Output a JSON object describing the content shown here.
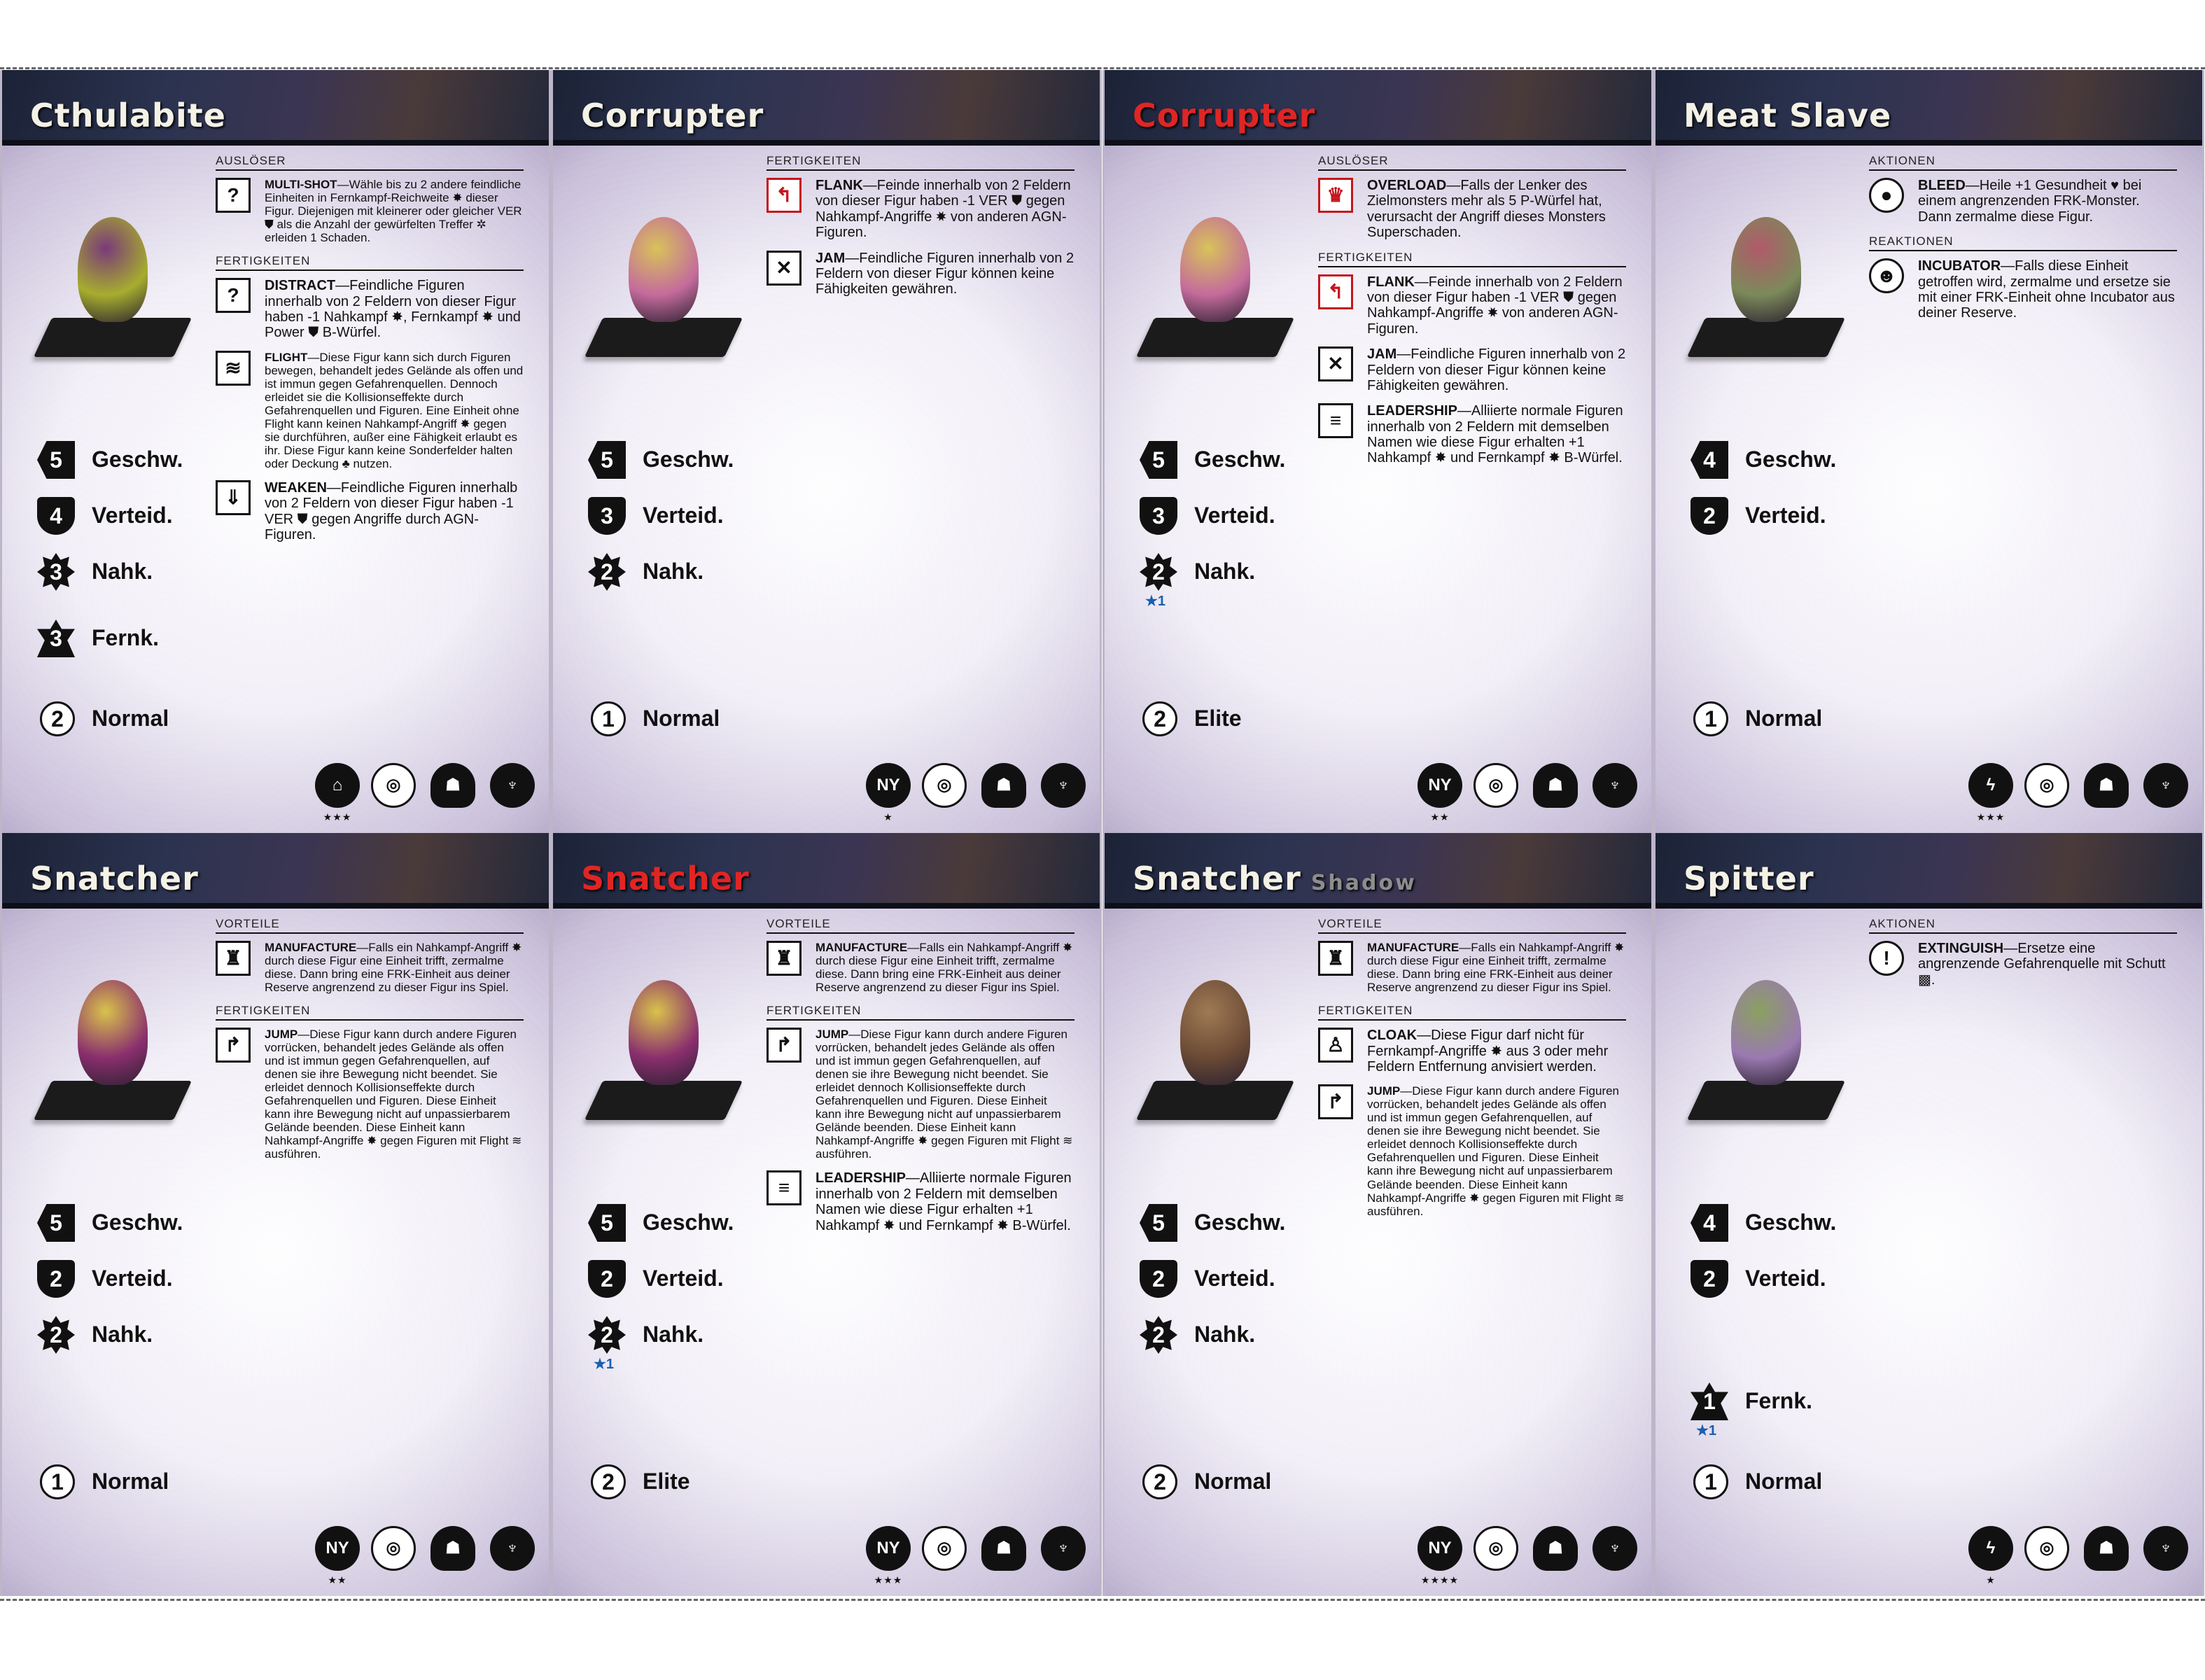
{
  "cards": [
    {
      "name": "Cthulabite",
      "subtitle": "",
      "name_red": false,
      "stats": [
        {
          "kind": "speed",
          "value": "5",
          "label": "Geschw.",
          "mod": ""
        },
        {
          "kind": "def",
          "value": "4",
          "label": "Verteid.",
          "mod": ""
        },
        {
          "kind": "melee",
          "value": "3",
          "label": "Nahk.",
          "mod": ""
        },
        {
          "kind": "ranged",
          "value": "3",
          "label": "Fernk.",
          "mod": ""
        },
        {
          "kind": "rank",
          "value": "2",
          "label": "Normal",
          "mod": ""
        }
      ],
      "sections": [
        {
          "title": "AUSLÖSER",
          "abilities": [
            {
              "icon": "?",
              "icon_name": "multi-shot-icon",
              "name": "MULTI-SHOT",
              "text": "—Wähle bis zu 2 andere feindliche Einheiten in Fernkampf-Reichweite ✸ dieser Figur. Diejenigen mit kleinerer oder gleicher VER ⛊ als die Anzahl der gewürfelten Treffer ✲ erleiden 1 Schaden.",
              "small": true
            }
          ]
        },
        {
          "title": "FERTIGKEITEN",
          "abilities": [
            {
              "icon": "?",
              "icon_name": "distract-icon",
              "name": "DISTRACT",
              "text": "—Feindliche Figuren innerhalb von 2 Feldern von dieser Figur haben -1 Nahkampf ✸, Fernkampf ✸ und Power ⛊ B-Würfel.",
              "small": false
            },
            {
              "icon": "≋",
              "icon_name": "flight-icon",
              "name": "FLIGHT",
              "text": "—Diese Figur kann sich durch Figuren bewegen, behandelt jedes Gelände als offen und ist immun gegen Gefahrenquellen. Dennoch erleidet sie die Kollisionseffekte durch Gefahrenquellen und Figuren. Eine Einheit ohne Flight kann keinen Nahkampf-Angriff ✸ gegen sie durchführen, außer eine Fähigkeit erlaubt es ihr. Diese Figur kann keine Sonderfelder halten oder Deckung ♣ nutzen.",
              "small": true
            },
            {
              "icon": "⇓",
              "icon_name": "weaken-icon",
              "name": "WEAKEN",
              "text": "—Feindliche Figuren innerhalb von 2 Feldern von dieser Figur haben -1 VER ⛊ gegen Angriffe durch AGN-Figuren.",
              "small": false
            }
          ]
        }
      ],
      "footer": [
        "★★★",
        "⌂",
        "◎",
        "☗",
        "♆"
      ],
      "figure_color": "#a6ad2e",
      "figure_accent": "#7a3a7a"
    },
    {
      "name": "Corrupter",
      "subtitle": "",
      "name_red": false,
      "stats": [
        {
          "kind": "speed",
          "value": "5",
          "label": "Geschw.",
          "mod": ""
        },
        {
          "kind": "def",
          "value": "3",
          "label": "Verteid.",
          "mod": ""
        },
        {
          "kind": "melee",
          "value": "2",
          "label": "Nahk.",
          "mod": ""
        },
        {
          "kind": "rank",
          "value": "1",
          "label": "Normal",
          "mod": ""
        }
      ],
      "sections": [
        {
          "title": "FERTIGKEITEN",
          "abilities": [
            {
              "icon": "↰",
              "icon_name": "flank-icon",
              "name": "FLANK",
              "text": "—Feinde innerhalb von 2 Feldern von dieser Figur haben -1 VER ⛊ gegen Nahkampf-Angriffe ✸ von anderen AGN-Figuren.",
              "small": false,
              "red": true
            },
            {
              "icon": "✕",
              "icon_name": "jam-icon",
              "name": "JAM",
              "text": "—Feindliche Figuren innerhalb von 2 Feldern von dieser Figur können keine Fähigkeiten gewähren.",
              "small": false
            }
          ]
        }
      ],
      "footer": [
        "★",
        "NY",
        "◎",
        "☗",
        "♆"
      ],
      "figure_color": "#c46b9c",
      "figure_accent": "#d8c25a"
    },
    {
      "name": "Corrupter",
      "subtitle": "",
      "name_red": true,
      "stats": [
        {
          "kind": "speed",
          "value": "5",
          "label": "Geschw.",
          "mod": ""
        },
        {
          "kind": "def",
          "value": "3",
          "label": "Verteid.",
          "mod": ""
        },
        {
          "kind": "melee",
          "value": "2",
          "label": "Nahk.",
          "mod": "★1"
        },
        {
          "kind": "rank",
          "value": "2",
          "label": "Elite",
          "mod": ""
        }
      ],
      "sections": [
        {
          "title": "AUSLÖSER",
          "abilities": [
            {
              "icon": "♛",
              "icon_name": "overload-icon",
              "name": "OVERLOAD",
              "text": "—Falls der Lenker des Zielmonsters mehr als 5 P-Würfel hat, verursacht der Angriff dieses Monsters Superschaden.",
              "small": false,
              "red": true
            }
          ]
        },
        {
          "title": "FERTIGKEITEN",
          "abilities": [
            {
              "icon": "↰",
              "icon_name": "flank-icon",
              "name": "FLANK",
              "text": "—Feinde innerhalb von 2 Feldern von dieser Figur haben -1 VER ⛊ gegen Nahkampf-Angriffe ✸ von anderen AGN-Figuren.",
              "small": false,
              "red": true
            },
            {
              "icon": "✕",
              "icon_name": "jam-icon",
              "name": "JAM",
              "text": "—Feindliche Figuren innerhalb von 2 Feldern von dieser Figur können keine Fähigkeiten gewähren.",
              "small": false
            },
            {
              "icon": "≡",
              "icon_name": "leadership-icon",
              "name": "LEADERSHIP",
              "text": "—Alliierte normale Figuren innerhalb von 2 Feldern mit demselben Namen wie diese Figur erhalten +1 Nahkampf ✸ und Fernkampf ✸ B-Würfel.",
              "small": false
            }
          ]
        }
      ],
      "footer": [
        "★★",
        "NY",
        "◎",
        "☗",
        "♆"
      ],
      "figure_color": "#c46b9c",
      "figure_accent": "#d8c25a"
    },
    {
      "name": "Meat Slave",
      "subtitle": "",
      "name_red": false,
      "stats": [
        {
          "kind": "speed",
          "value": "4",
          "label": "Geschw.",
          "mod": ""
        },
        {
          "kind": "def",
          "value": "2",
          "label": "Verteid.",
          "mod": ""
        },
        {
          "kind": "rank",
          "value": "1",
          "label": "Normal",
          "mod": ""
        }
      ],
      "sections": [
        {
          "title": "AKTIONEN",
          "abilities": [
            {
              "icon": "●",
              "icon_name": "bleed-icon",
              "name": "BLEED",
              "text": "—Heile +1 Gesundheit ♥ bei einem angrenzenden FRK-Monster. Dann zermalme diese Figur.",
              "small": false,
              "round": true
            }
          ]
        },
        {
          "title": "REAKTIONEN",
          "abilities": [
            {
              "icon": "☻",
              "icon_name": "incubator-icon",
              "name": "INCUBATOR",
              "text": "—Falls diese Einheit getroffen wird, zermalme und ersetze sie mit einer FRK-Einheit ohne Incubator aus deiner Reserve.",
              "small": false,
              "round": true
            }
          ]
        }
      ],
      "footer": [
        "★★★",
        "ϟ",
        "◎",
        "☗",
        "♆"
      ],
      "figure_color": "#7c8a5a",
      "figure_accent": "#b05a6a"
    },
    {
      "name": "Snatcher",
      "subtitle": "",
      "name_red": false,
      "stats": [
        {
          "kind": "speed",
          "value": "5",
          "label": "Geschw.",
          "mod": ""
        },
        {
          "kind": "def",
          "value": "2",
          "label": "Verteid.",
          "mod": ""
        },
        {
          "kind": "melee",
          "value": "2",
          "label": "Nahk.",
          "mod": ""
        },
        {
          "kind": "rank",
          "value": "1",
          "label": "Normal",
          "mod": ""
        }
      ],
      "sections": [
        {
          "title": "VORTEILE",
          "abilities": [
            {
              "icon": "♜",
              "icon_name": "manufacture-icon",
              "name": "MANUFACTURE",
              "text": "—Falls ein Nahkampf-Angriff ✸ durch diese Figur eine Einheit trifft, zermalme diese. Dann bring eine FRK-Einheit aus deiner Reserve angrenzend zu dieser Figur ins Spiel.",
              "small": true
            }
          ]
        },
        {
          "title": "FERTIGKEITEN",
          "abilities": [
            {
              "icon": "↱",
              "icon_name": "jump-icon",
              "name": "JUMP",
              "text": "—Diese Figur kann durch andere Figuren vorrücken, behandelt jedes Gelände als offen und ist immun gegen Gefahrenquellen, auf denen sie ihre Bewegung nicht beendet. Sie erleidet dennoch Kollisionseffekte durch Gefahrenquellen und Figuren. Diese Einheit kann ihre Bewegung nicht auf unpassierbarem Gelände beenden. Diese Einheit kann Nahkampf-Angriffe ✸ gegen Figuren mit Flight ≋ ausführen.",
              "small": true
            }
          ]
        }
      ],
      "footer": [
        "★★",
        "NY",
        "◎",
        "☗",
        "♆"
      ],
      "figure_color": "#8a2f6e",
      "figure_accent": "#d9c24b"
    },
    {
      "name": "Snatcher",
      "subtitle": "",
      "name_red": true,
      "stats": [
        {
          "kind": "speed",
          "value": "5",
          "label": "Geschw.",
          "mod": ""
        },
        {
          "kind": "def",
          "value": "2",
          "label": "Verteid.",
          "mod": ""
        },
        {
          "kind": "melee",
          "value": "2",
          "label": "Nahk.",
          "mod": "★1"
        },
        {
          "kind": "rank",
          "value": "2",
          "label": "Elite",
          "mod": ""
        }
      ],
      "sections": [
        {
          "title": "VORTEILE",
          "abilities": [
            {
              "icon": "♜",
              "icon_name": "manufacture-icon",
              "name": "MANUFACTURE",
              "text": "—Falls ein Nahkampf-Angriff ✸ durch diese Figur eine Einheit trifft, zermalme diese. Dann bring eine FRK-Einheit aus deiner Reserve angrenzend zu dieser Figur ins Spiel.",
              "small": true
            }
          ]
        },
        {
          "title": "FERTIGKEITEN",
          "abilities": [
            {
              "icon": "↱",
              "icon_name": "jump-icon",
              "name": "JUMP",
              "text": "—Diese Figur kann durch andere Figuren vorrücken, behandelt jedes Gelände als offen und ist immun gegen Gefahrenquellen, auf denen sie ihre Bewegung nicht beendet. Sie erleidet dennoch Kollisionseffekte durch Gefahrenquellen und Figuren. Diese Einheit kann ihre Bewegung nicht auf unpassierbarem Gelände beenden. Diese Einheit kann Nahkampf-Angriffe ✸ gegen Figuren mit Flight ≋ ausführen.",
              "small": true
            },
            {
              "icon": "≡",
              "icon_name": "leadership-icon",
              "name": "LEADERSHIP",
              "text": "—Alliierte normale Figuren innerhalb von 2 Feldern mit demselben Namen wie diese Figur erhalten +1 Nahkampf ✸ und Fernkampf ✸ B-Würfel.",
              "small": false
            }
          ]
        }
      ],
      "footer": [
        "★★★",
        "NY",
        "◎",
        "☗",
        "♆"
      ],
      "figure_color": "#8a2f6e",
      "figure_accent": "#d9c24b"
    },
    {
      "name": "Snatcher",
      "subtitle": "Shadow",
      "name_red": false,
      "stats": [
        {
          "kind": "speed",
          "value": "5",
          "label": "Geschw.",
          "mod": ""
        },
        {
          "kind": "def",
          "value": "2",
          "label": "Verteid.",
          "mod": ""
        },
        {
          "kind": "melee",
          "value": "2",
          "label": "Nahk.",
          "mod": ""
        },
        {
          "kind": "rank",
          "value": "2",
          "label": "Normal",
          "mod": ""
        }
      ],
      "sections": [
        {
          "title": "VORTEILE",
          "abilities": [
            {
              "icon": "♜",
              "icon_name": "manufacture-icon",
              "name": "MANUFACTURE",
              "text": "—Falls ein Nahkampf-Angriff ✸ durch diese Figur eine Einheit trifft, zermalme diese. Dann bring eine FRK-Einheit aus deiner Reserve angrenzend zu dieser Figur ins Spiel.",
              "small": true
            }
          ]
        },
        {
          "title": "FERTIGKEITEN",
          "abilities": [
            {
              "icon": "♙",
              "icon_name": "cloak-icon",
              "name": "CLOAK",
              "text": "—Diese Figur darf nicht für Fernkampf-Angriffe ✸ aus 3 oder mehr Feldern Entfernung anvisiert werden.",
              "small": false
            },
            {
              "icon": "↱",
              "icon_name": "jump-icon",
              "name": "JUMP",
              "text": "—Diese Figur kann durch andere Figuren vorrücken, behandelt jedes Gelände als offen und ist immun gegen Gefahrenquellen, auf denen sie ihre Bewegung nicht beendet. Sie erleidet dennoch Kollisionseffekte durch Gefahrenquellen und Figuren. Diese Einheit kann ihre Bewegung nicht auf unpassierbarem Gelände beenden. Diese Einheit kann Nahkampf-Angriffe ✸ gegen Figuren mit Flight ≋ ausführen.",
              "small": true
            }
          ]
        }
      ],
      "footer": [
        "★★★★",
        "NY",
        "◎",
        "☗",
        "♆"
      ],
      "figure_color": "#6b4a35",
      "figure_accent": "#a07a55"
    },
    {
      "name": "Spitter",
      "subtitle": "",
      "name_red": false,
      "stats": [
        {
          "kind": "speed",
          "value": "4",
          "label": "Geschw.",
          "mod": ""
        },
        {
          "kind": "def",
          "value": "2",
          "label": "Verteid.",
          "mod": ""
        },
        {
          "kind": "ranged",
          "value": "1",
          "label": "Fernk.",
          "mod": "★1"
        },
        {
          "kind": "rank",
          "value": "1",
          "label": "Normal",
          "mod": ""
        }
      ],
      "sections": [
        {
          "title": "AKTIONEN",
          "abilities": [
            {
              "icon": "!",
              "icon_name": "extinguish-icon",
              "name": "EXTINGUISH",
              "text": "—Ersetze eine angrenzende Gefahrenquelle mit Schutt ▩.",
              "small": false,
              "round": true
            }
          ]
        }
      ],
      "footer": [
        "★",
        "ϟ",
        "◎",
        "☗",
        "♆"
      ],
      "figure_color": "#9a7ab0",
      "figure_accent": "#8aa060"
    }
  ]
}
